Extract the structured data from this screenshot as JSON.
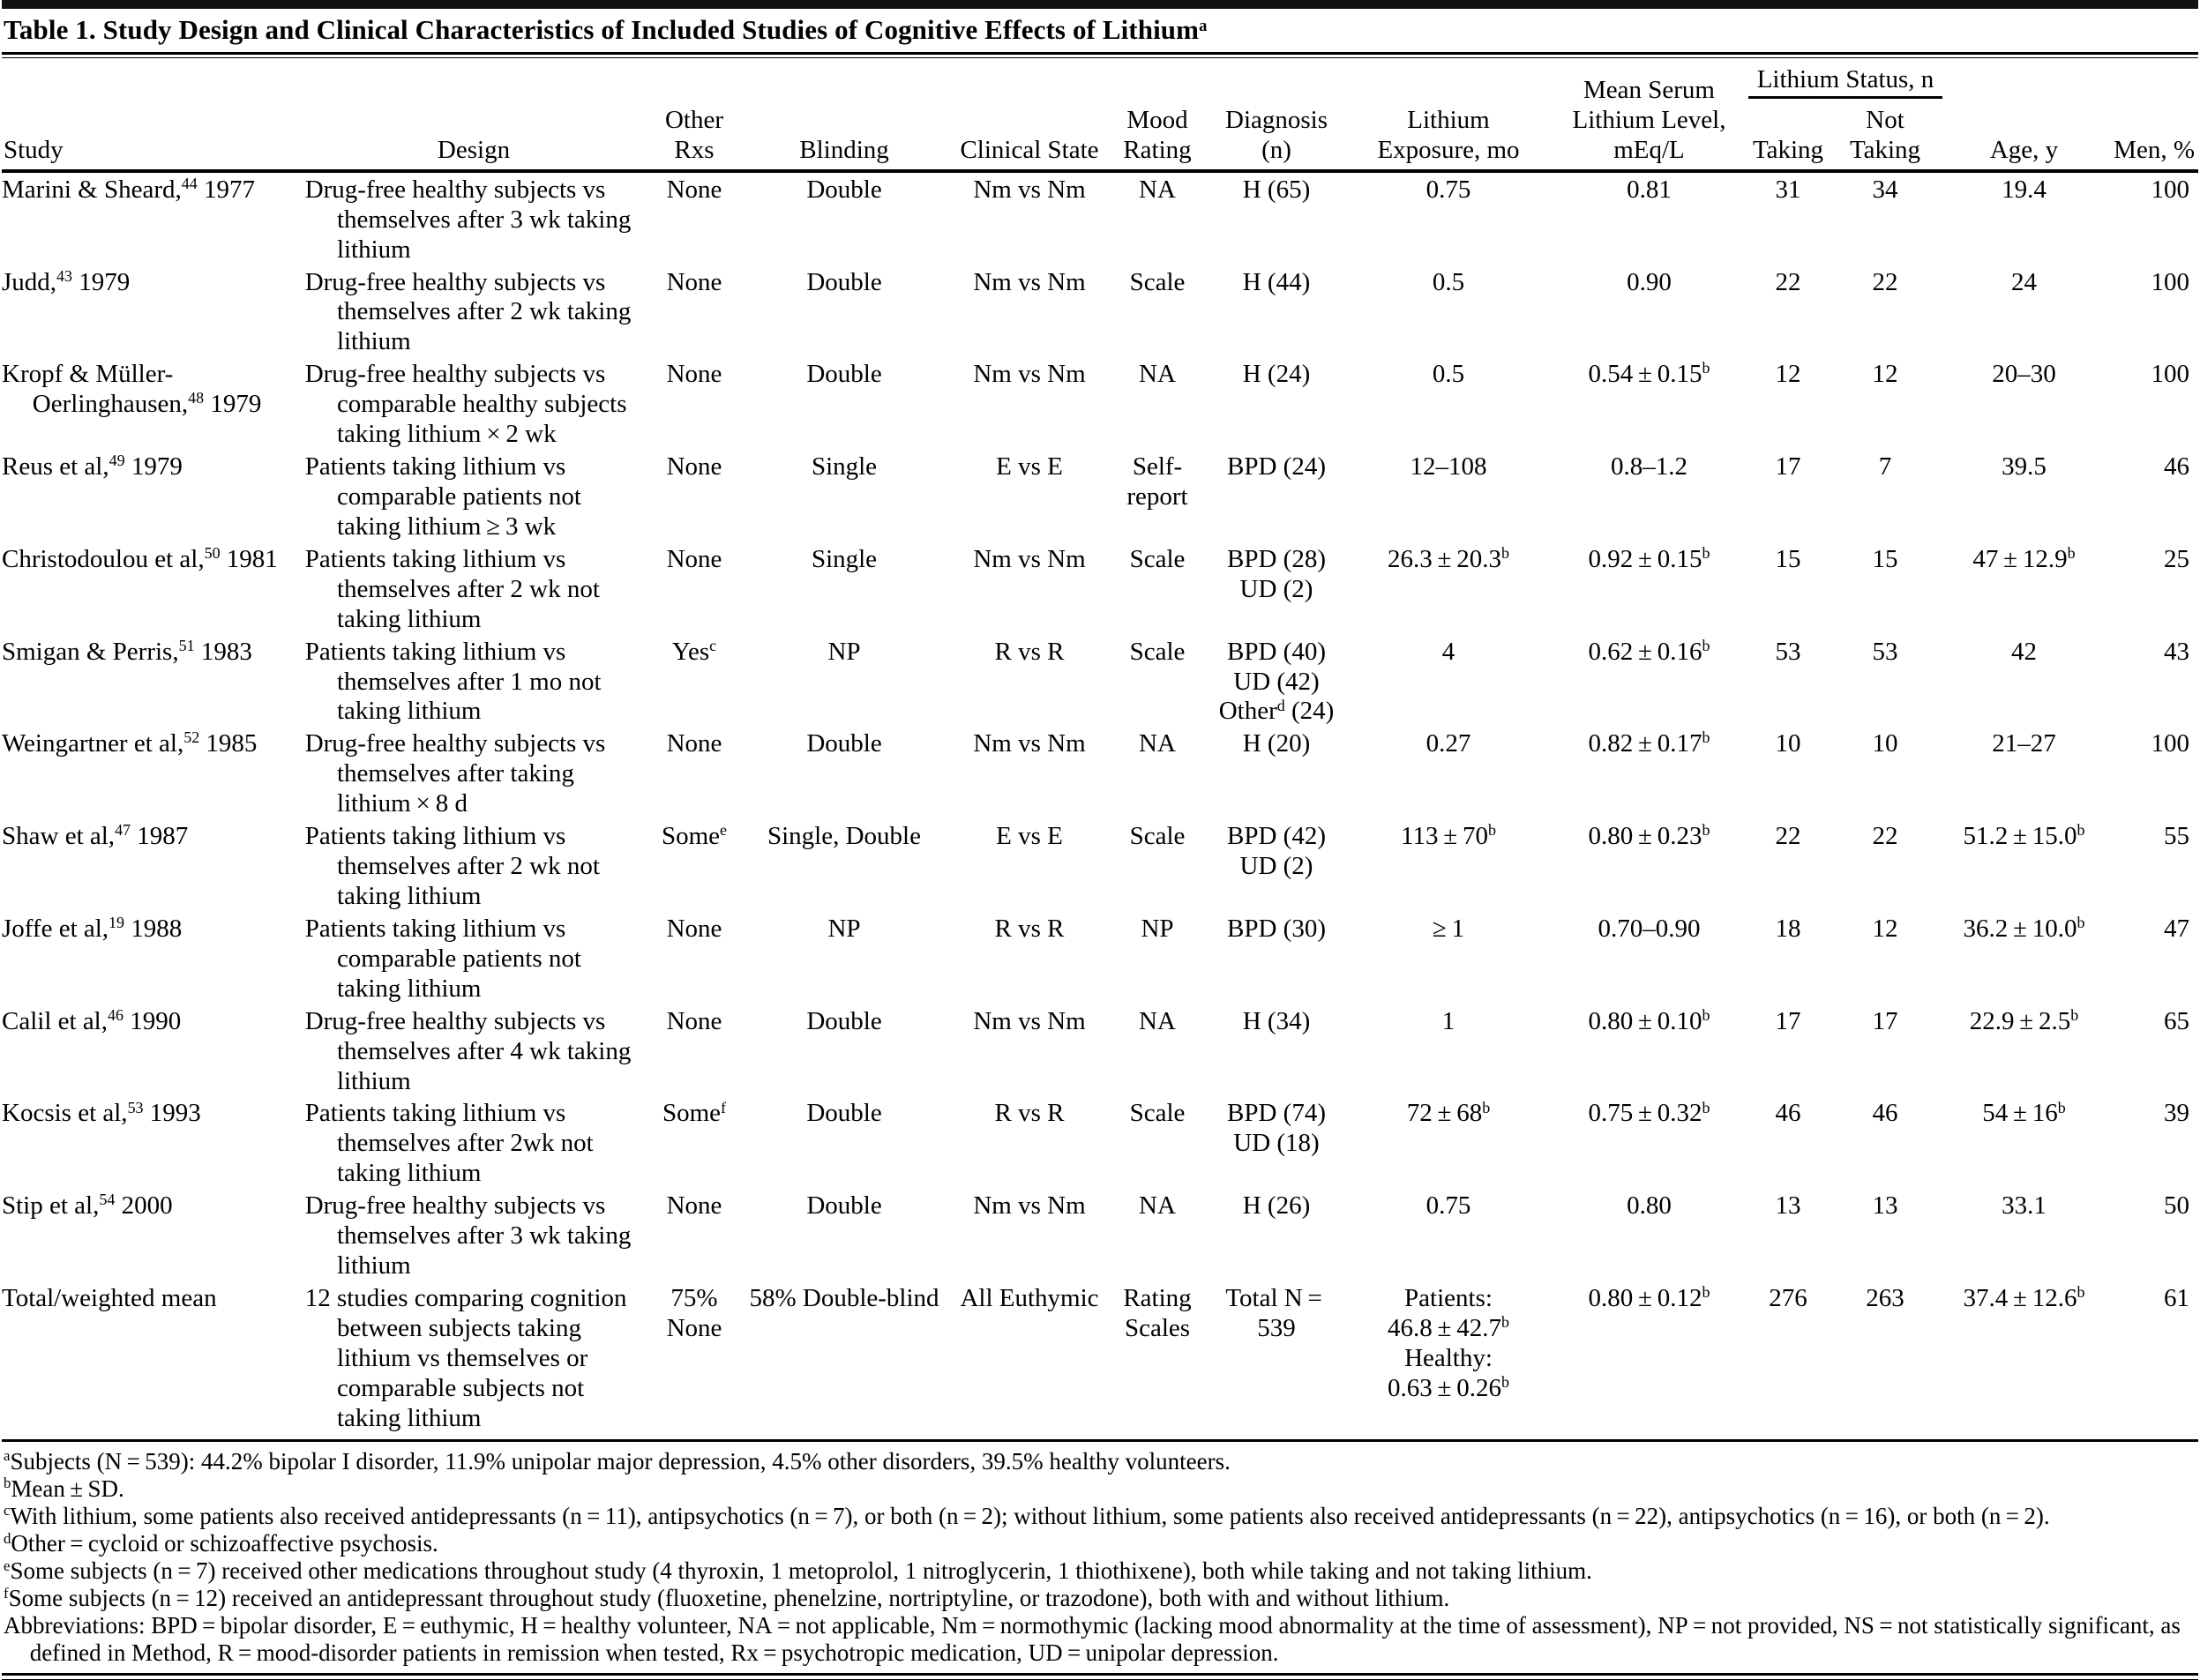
{
  "table": {
    "title": "Table 1. Study Design and Clinical Characteristics of Included Studies of Cognitive Effects of Lithium",
    "title_sup": "a",
    "headers": {
      "study": "Study",
      "design": "Design",
      "other_rxs": "Other\nRxs",
      "blinding": "Blinding",
      "clinical_state": "Clinical State",
      "mood_rating": "Mood\nRating",
      "diagnosis": "Diagnosis (n)",
      "exposure": "Lithium\nExposure, mo",
      "serum": "Mean Serum\nLithium Level,\nmEq/L",
      "lithium_status": "Lithium Status, n",
      "taking": "Taking",
      "not_taking": "Not Taking",
      "age": "Age, y",
      "men": "Men, %"
    },
    "rows": [
      {
        "study": "Marini & Sheard,{44} 1977",
        "design": "Drug-free healthy subjects vs themselves after 3 wk taking lithium",
        "other_rxs": "None",
        "blinding": "Double",
        "clinical_state": "Nm vs Nm",
        "mood_rating": "NA",
        "diagnosis": "H (65)",
        "exposure": "0.75",
        "serum": "0.81",
        "taking": "31",
        "not_taking": "34",
        "age": "19.4",
        "men": "100"
      },
      {
        "study": "Judd,{43} 1979",
        "design": "Drug-free healthy subjects vs themselves after 2 wk taking lithium",
        "other_rxs": "None",
        "blinding": "Double",
        "clinical_state": "Nm vs Nm",
        "mood_rating": "Scale",
        "diagnosis": "H (44)",
        "exposure": "0.5",
        "serum": "0.90",
        "taking": "22",
        "not_taking": "22",
        "age": "24",
        "men": "100"
      },
      {
        "study": "Kropf & Müller-Oerlinghausen,{48} 1979",
        "design": "Drug-free healthy subjects vs comparable healthy subjects taking lithium × 2 wk",
        "other_rxs": "None",
        "blinding": "Double",
        "clinical_state": "Nm vs Nm",
        "mood_rating": "NA",
        "diagnosis": "H (24)",
        "exposure": "0.5",
        "serum": "0.54 ± 0.15{b}",
        "taking": "12",
        "not_taking": "12",
        "age": "20–30",
        "men": "100"
      },
      {
        "study": "Reus et al,{49} 1979",
        "design": "Patients taking lithium vs comparable patients not taking lithium ≥ 3 wk",
        "other_rxs": "None",
        "blinding": "Single",
        "clinical_state": "E vs E",
        "mood_rating": "Self-\nreport",
        "diagnosis": "BPD (24)",
        "exposure": "12–108",
        "serum": "0.8–1.2",
        "taking": "17",
        "not_taking": "7",
        "age": "39.5",
        "men": "46"
      },
      {
        "study": "Christodoulou et al,{50} 1981",
        "design": "Patients taking lithium vs themselves after 2 wk not taking lithium",
        "other_rxs": "None",
        "blinding": "Single",
        "clinical_state": "Nm vs Nm",
        "mood_rating": "Scale",
        "diagnosis": "BPD (28)\nUD (2)",
        "exposure": "26.3 ± 20.3{b}",
        "serum": "0.92 ± 0.15{b}",
        "taking": "15",
        "not_taking": "15",
        "age": "47 ± 12.9{b}",
        "men": "25"
      },
      {
        "study": "Smigan & Perris,{51} 1983",
        "design": "Patients taking lithium vs themselves after 1 mo not taking lithium",
        "other_rxs": "Yes{c}",
        "blinding": "NP",
        "clinical_state": "R vs R",
        "mood_rating": "Scale",
        "diagnosis": "BPD (40)\nUD (42)\nOther{d} (24)",
        "exposure": "4",
        "serum": "0.62 ± 0.16{b}",
        "taking": "53",
        "not_taking": "53",
        "age": "42",
        "men": "43"
      },
      {
        "study": "Weingartner et al,{52} 1985",
        "design": "Drug-free healthy subjects vs themselves after taking lithium × 8 d",
        "other_rxs": "None",
        "blinding": "Double",
        "clinical_state": "Nm vs Nm",
        "mood_rating": "NA",
        "diagnosis": "H (20)",
        "exposure": "0.27",
        "serum": "0.82 ± 0.17{b}",
        "taking": "10",
        "not_taking": "10",
        "age": "21–27",
        "men": "100"
      },
      {
        "study": "Shaw et al,{47} 1987",
        "design": "Patients taking lithium vs themselves after 2 wk not taking lithium",
        "other_rxs": "Some{e}",
        "blinding": "Single, Double",
        "clinical_state": "E vs E",
        "mood_rating": "Scale",
        "diagnosis": "BPD (42)\nUD (2)",
        "exposure": "113 ± 70{b}",
        "serum": "0.80 ± 0.23{b}",
        "taking": "22",
        "not_taking": "22",
        "age": "51.2 ± 15.0{b}",
        "men": "55"
      },
      {
        "study": "Joffe et al,{19} 1988",
        "design": "Patients taking lithium vs comparable patients not taking lithium",
        "other_rxs": "None",
        "blinding": "NP",
        "clinical_state": "R vs R",
        "mood_rating": "NP",
        "diagnosis": "BPD (30)",
        "exposure": "≥ 1",
        "serum": "0.70–0.90",
        "taking": "18",
        "not_taking": "12",
        "age": "36.2 ± 10.0{b}",
        "men": "47"
      },
      {
        "study": "Calil et al,{46} 1990",
        "design": "Drug-free healthy subjects vs themselves after 4 wk taking lithium",
        "other_rxs": "None",
        "blinding": "Double",
        "clinical_state": "Nm vs Nm",
        "mood_rating": "NA",
        "diagnosis": "H (34)",
        "exposure": "1",
        "serum": "0.80 ± 0.10{b}",
        "taking": "17",
        "not_taking": "17",
        "age": "22.9 ± 2.5{b}",
        "men": "65"
      },
      {
        "study": "Kocsis et al,{53} 1993",
        "design": "Patients taking lithium vs themselves after 2wk not taking lithium",
        "other_rxs": "Some{f}",
        "blinding": "Double",
        "clinical_state": "R vs R",
        "mood_rating": "Scale",
        "diagnosis": "BPD (74)\nUD (18)",
        "exposure": "72 ± 68{b}",
        "serum": "0.75 ± 0.32{b}",
        "taking": "46",
        "not_taking": "46",
        "age": "54 ± 16{b}",
        "men": "39"
      },
      {
        "study": "Stip et al,{54} 2000",
        "design": "Drug-free healthy subjects vs themselves after 3 wk taking lithium",
        "other_rxs": "None",
        "blinding": "Double",
        "clinical_state": "Nm vs Nm",
        "mood_rating": "NA",
        "diagnosis": "H (26)",
        "exposure": "0.75",
        "serum": "0.80",
        "taking": "13",
        "not_taking": "13",
        "age": "33.1",
        "men": "50"
      },
      {
        "study": "Total/weighted mean",
        "design": "12 studies comparing cognition between subjects taking lithium vs themselves or comparable subjects not taking lithium",
        "other_rxs": "75%\nNone",
        "blinding": "58% Double-blind",
        "clinical_state": "All Euthymic",
        "mood_rating": "Rating\nScales",
        "diagnosis": "Total N = 539",
        "exposure": "Patients:\n46.8 ± 42.7{b}\nHealthy:\n0.63 ± 0.26{b}",
        "serum": "0.80 ± 0.12{b}",
        "taking": "276",
        "not_taking": "263",
        "age": "37.4 ± 12.6{b}",
        "men": "61"
      }
    ],
    "footnotes": [
      {
        "sup": "a",
        "text": "Subjects (N = 539): 44.2% bipolar I disorder, 11.9% unipolar major depression, 4.5% other disorders, 39.5% healthy volunteers."
      },
      {
        "sup": "b",
        "text": "Mean ± SD."
      },
      {
        "sup": "c",
        "text": "With lithium, some patients also received antidepressants (n = 11), antipsychotics (n = 7), or both (n = 2); without lithium, some patients also received antidepressants (n = 22), antipsychotics (n = 16), or both (n = 2)."
      },
      {
        "sup": "d",
        "text": "Other = cycloid or schizoaffective psychosis."
      },
      {
        "sup": "e",
        "text": "Some subjects (n = 7) received other medications throughout study (4 thyroxin, 1 metoprolol, 1 nitroglycerin, 1 thiothixene), both while taking and not taking lithium."
      },
      {
        "sup": "f",
        "text": "Some subjects (n = 12) received an antidepressant throughout study (fluoxetine, phenelzine, nortriptyline, or trazodone), both with and without lithium."
      },
      {
        "sup": "",
        "text": "Abbreviations: BPD = bipolar disorder, E = euthymic, H = healthy volunteer, NA = not applicable, Nm = normothymic (lacking mood abnormality at the time of assessment), NP = not provided, NS = not statistically significant, as defined in Method, R = mood-disorder patients in remission when tested, Rx = psychotropic medication, UD = unipolar depression."
      }
    ]
  }
}
